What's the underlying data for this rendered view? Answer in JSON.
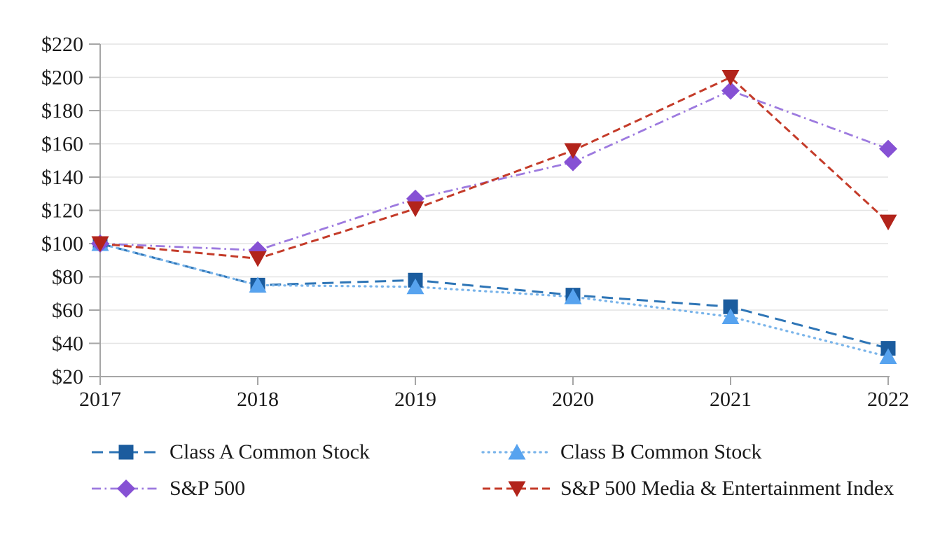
{
  "chart_data": {
    "type": "line",
    "title": "",
    "xlabel": "",
    "ylabel": "",
    "x": [
      "2017",
      "2018",
      "2019",
      "2020",
      "2021",
      "2022"
    ],
    "series": [
      {
        "name": "Class A Common Stock",
        "values": [
          100,
          75,
          78,
          69,
          62,
          37
        ],
        "line_color": "#2E75B6",
        "marker_color": "#1B5C9E",
        "marker": "square",
        "dash": "long-dash"
      },
      {
        "name": "Class B Common Stock",
        "values": [
          100,
          75,
          74,
          68,
          56,
          32
        ],
        "line_color": "#79B4EA",
        "marker_color": "#57A3EF",
        "marker": "triangle-up",
        "dash": "dot"
      },
      {
        "name": "S&P 500",
        "values": [
          100,
          96,
          127,
          149,
          192,
          157
        ],
        "line_color": "#9D7ADF",
        "marker_color": "#8651D4",
        "marker": "diamond",
        "dash": "dash-dot"
      },
      {
        "name": "S&P 500 Media & Entertainment Index",
        "values": [
          100,
          91,
          121,
          156,
          200,
          113
        ],
        "line_color": "#C43B29",
        "marker_color": "#B2241B",
        "marker": "triangle-down",
        "dash": "dash"
      }
    ],
    "axis": {
      "y_min": 20,
      "y_max": 220,
      "y_step": 20,
      "y_prefix": "$",
      "grid": true,
      "grid_color": "#E4E4E4",
      "axis_color": "#A6A6A6",
      "tick_label_color": "#1a1a1a",
      "legend_position": "bottom"
    }
  }
}
